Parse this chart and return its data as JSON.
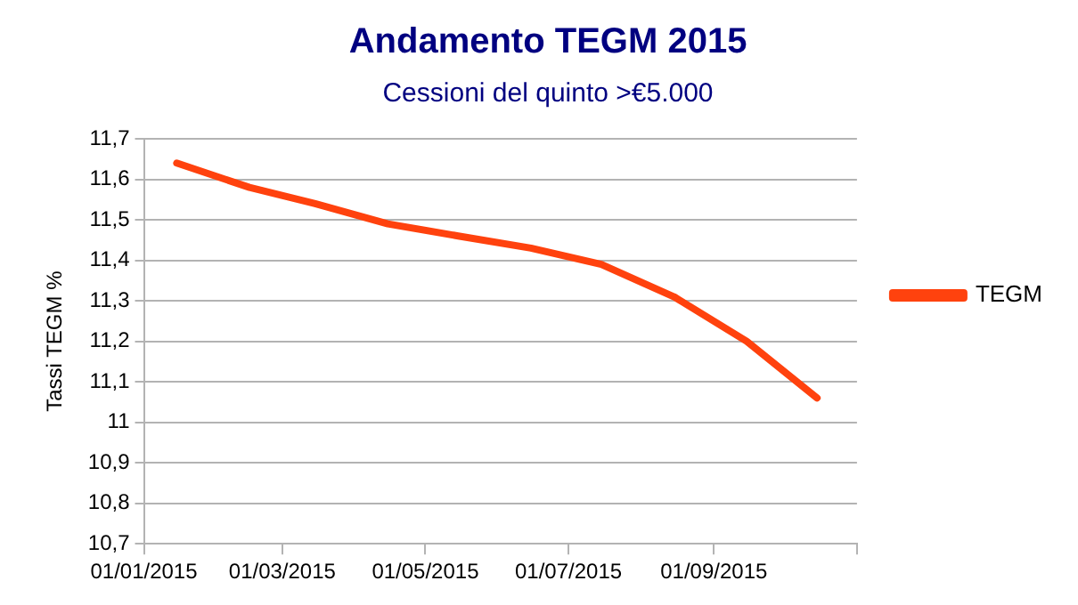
{
  "chart_data": {
    "type": "line",
    "title": "Andamento TEGM 2015",
    "subtitle": "Cessioni del quinto >€5.000",
    "ylabel": "Tassi TEGM %",
    "x": [
      "2015-01-15",
      "2015-02-15",
      "2015-03-15",
      "2015-04-15",
      "2015-05-15",
      "2015-06-15",
      "2015-07-15",
      "2015-08-15",
      "2015-09-15",
      "2015-10-15"
    ],
    "series": [
      {
        "name": "TEGM",
        "color": "#ff420e",
        "values": [
          11.64,
          11.58,
          11.54,
          11.49,
          11.46,
          11.43,
          11.39,
          11.31,
          11.2,
          11.06
        ]
      }
    ],
    "xlim": [
      "2015-01-01",
      "2015-11-01"
    ],
    "xticks": [
      {
        "value": "2015-01-01",
        "label": "01/01/2015"
      },
      {
        "value": "2015-03-01",
        "label": "01/03/2015"
      },
      {
        "value": "2015-05-01",
        "label": "01/05/2015"
      },
      {
        "value": "2015-07-01",
        "label": "01/07/2015"
      },
      {
        "value": "2015-09-01",
        "label": "01/09/2015"
      },
      {
        "value": "2015-11-01",
        "label": null
      }
    ],
    "ylim": [
      10.7,
      11.7
    ],
    "yticks": [
      {
        "value": 10.7,
        "label": "10,7"
      },
      {
        "value": 10.8,
        "label": "10,8"
      },
      {
        "value": 10.9,
        "label": "10,9"
      },
      {
        "value": 11,
        "label": "11"
      },
      {
        "value": 11.1,
        "label": "11,1"
      },
      {
        "value": 11.2,
        "label": "11,2"
      },
      {
        "value": 11.3,
        "label": "11,3"
      },
      {
        "value": 11.4,
        "label": "11,4"
      },
      {
        "value": 11.5,
        "label": "11,5"
      },
      {
        "value": 11.6,
        "label": "11,6"
      },
      {
        "value": 11.7,
        "label": "11,7"
      }
    ],
    "grid": "y",
    "legend": "right",
    "marker": "none",
    "line_style": "solid"
  }
}
